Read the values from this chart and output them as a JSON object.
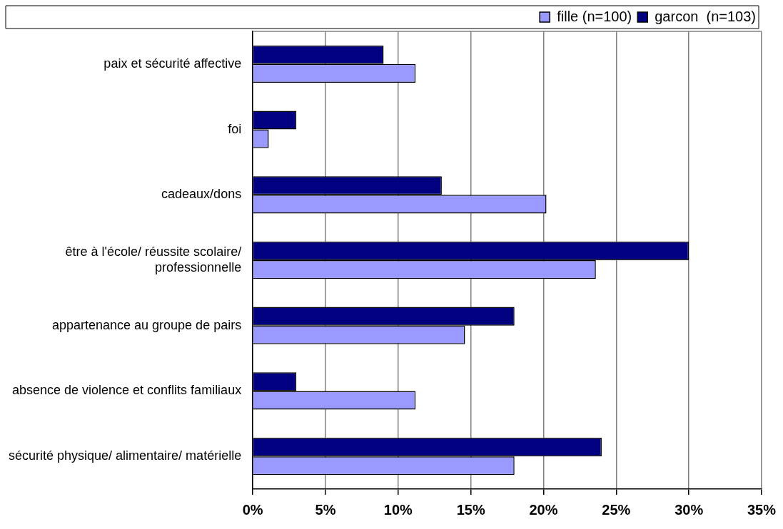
{
  "chart_data": {
    "type": "bar",
    "orientation": "horizontal",
    "categories": [
      "paix et sécurité affective",
      "foi",
      "cadeaux/dons",
      "être à l'école/ réussite scolaire/ professionnelle",
      "appartenance au groupe de pairs",
      "absence de violence et conflits familiaux",
      "sécurité physique/ alimentaire/ matérielle"
    ],
    "series": [
      {
        "name": "fille (n=100)",
        "color": "#9999ff",
        "values": [
          11.2,
          1.1,
          20.2,
          23.6,
          14.6,
          11.2,
          18.0
        ]
      },
      {
        "name": "garcon  (n=103)",
        "color": "#000080",
        "values": [
          9.0,
          3.0,
          13.0,
          30.0,
          18.0,
          3.0,
          24.0
        ]
      }
    ],
    "xlim": [
      0,
      35
    ],
    "xticks": [
      {
        "value": 0,
        "label": "0%"
      },
      {
        "value": 5,
        "label": "5%"
      },
      {
        "value": 10,
        "label": "10%"
      },
      {
        "value": 15,
        "label": "15%"
      },
      {
        "value": 20,
        "label": "20%"
      },
      {
        "value": 25,
        "label": "25%"
      },
      {
        "value": 30,
        "label": "30%"
      },
      {
        "value": 35,
        "label": "35%"
      }
    ],
    "grid": "x",
    "legend": "top"
  }
}
